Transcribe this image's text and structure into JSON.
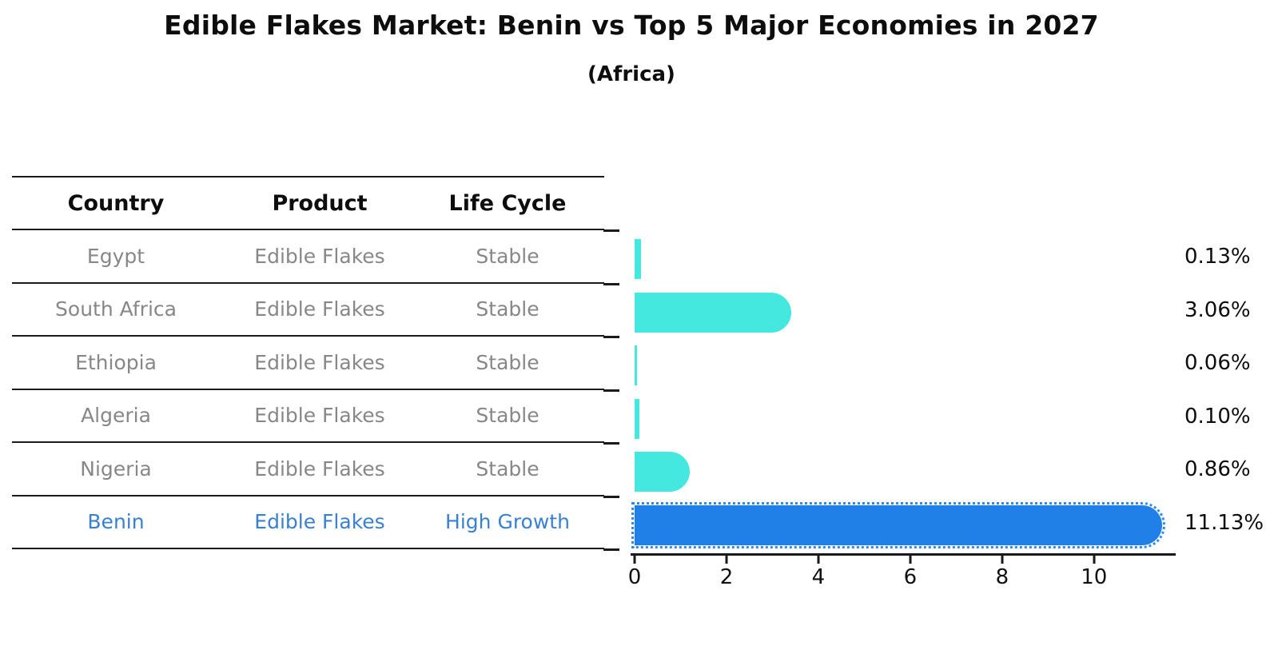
{
  "title": "Edible Flakes Market: Benin vs Top 5 Major Economies in 2027",
  "subtitle": "(Africa)",
  "table": {
    "columns": [
      "Country",
      "Product",
      "Life Cycle"
    ],
    "rows": [
      {
        "country": "Egypt",
        "product": "Edible Flakes",
        "life_cycle": "Stable",
        "highlight": false
      },
      {
        "country": "South Africa",
        "product": "Edible Flakes",
        "life_cycle": "Stable",
        "highlight": false
      },
      {
        "country": "Ethiopia",
        "product": "Edible Flakes",
        "life_cycle": "Stable",
        "highlight": false
      },
      {
        "country": "Algeria",
        "product": "Edible Flakes",
        "life_cycle": "Stable",
        "highlight": false
      },
      {
        "country": "Nigeria",
        "product": "Edible Flakes",
        "life_cycle": "Stable",
        "highlight": false
      },
      {
        "country": "Benin",
        "product": "Edible Flakes",
        "life_cycle": "High Growth",
        "highlight": true
      }
    ]
  },
  "chart_data": {
    "type": "bar",
    "orientation": "horizontal",
    "title": "Edible Flakes Market: Benin vs Top 5 Major Economies in 2027 (Africa)",
    "categories": [
      "Egypt",
      "South Africa",
      "Ethiopia",
      "Algeria",
      "Nigeria",
      "Benin"
    ],
    "values": [
      0.13,
      3.06,
      0.06,
      0.1,
      0.86,
      11.13
    ],
    "value_labels": [
      "0.13%",
      "3.06%",
      "0.06%",
      "0.10%",
      "0.86%",
      "11.13%"
    ],
    "xlabel": "",
    "ylabel": "",
    "xlim": [
      0,
      11.76
    ],
    "x_ticks": [
      0,
      2,
      4,
      6,
      8,
      10
    ],
    "grid": false,
    "legend": "none",
    "highlight_index": 5,
    "highlight_style": "dotted-border",
    "colors": {
      "bar_default": "#45E8DF",
      "bar_highlight": "#2080E8",
      "highlight_text": "#3a80d2",
      "row_text": "#878787",
      "axis_text": "#111111"
    }
  }
}
